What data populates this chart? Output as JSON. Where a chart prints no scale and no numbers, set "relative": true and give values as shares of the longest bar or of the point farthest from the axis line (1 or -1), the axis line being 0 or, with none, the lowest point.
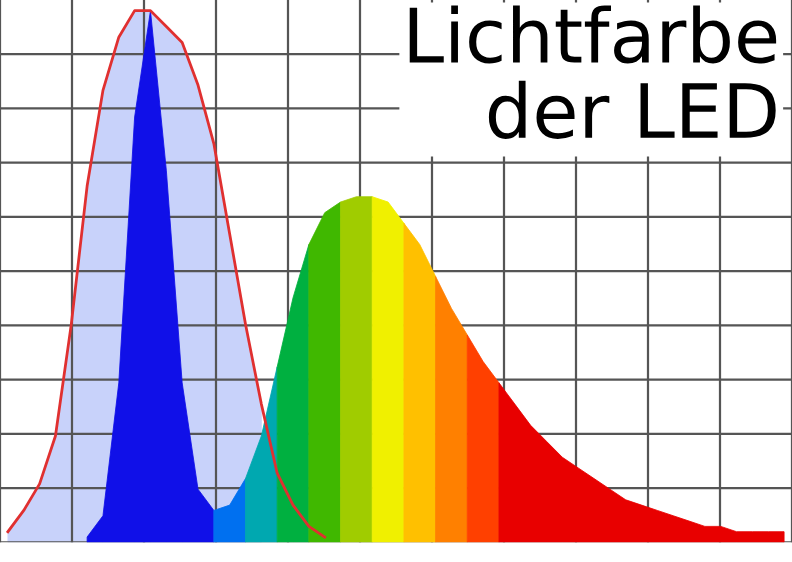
{
  "chart_data": {
    "type": "area",
    "title": "Lichtfarbe der LED",
    "relative": true,
    "grid": true,
    "categories": [
      null,
      null,
      null,
      null,
      null,
      null,
      null,
      null,
      null,
      null,
      null,
      null,
      null,
      null,
      null,
      null,
      null,
      null,
      null,
      null,
      null,
      null,
      null,
      null,
      null,
      null,
      null,
      null,
      null,
      null,
      null,
      null,
      null,
      null,
      null,
      null,
      null,
      null,
      null,
      null,
      null,
      null,
      null,
      null,
      null,
      null,
      null,
      null,
      null,
      null
    ],
    "series": [
      {
        "color": "#c8d2fa",
        "values": [
          0.02,
          0.06,
          0.11,
          0.2,
          0.41,
          0.67,
          0.85,
          0.95,
          1.0,
          1.0,
          0.97,
          0.94,
          0.86,
          0.75,
          0.58,
          0.41,
          0.26,
          null,
          null,
          null,
          null,
          null,
          null,
          null,
          null,
          null,
          null,
          null,
          null,
          null,
          null,
          null,
          null,
          null,
          null,
          null,
          null,
          null,
          null,
          null,
          null,
          null,
          null,
          null,
          null,
          null,
          null,
          null,
          null,
          null
        ]
      },
      {
        "color": "#1010e8",
        "values": [
          null,
          null,
          null,
          null,
          null,
          0.01,
          0.05,
          0.3,
          0.8,
          1.0,
          0.7,
          0.3,
          0.1,
          0.06,
          null,
          null,
          null,
          null,
          null,
          null,
          null,
          null,
          null,
          null,
          null,
          null,
          null,
          null,
          null,
          null,
          null,
          null,
          null,
          null,
          null,
          null,
          null,
          null,
          null,
          null,
          null,
          null,
          null,
          null,
          null,
          null,
          null,
          null,
          null,
          null
        ]
      },
      {
        "color": "#0070f0",
        "values": [
          null,
          null,
          null,
          null,
          null,
          null,
          null,
          null,
          null,
          null,
          null,
          null,
          null,
          0.06,
          0.07,
          0.12,
          null,
          null,
          null,
          null,
          null,
          null,
          null,
          null,
          null,
          null,
          null,
          null,
          null,
          null,
          null,
          null,
          null,
          null,
          null,
          null,
          null,
          null,
          null,
          null,
          null,
          null,
          null,
          null,
          null,
          null,
          null,
          null,
          null,
          null
        ]
      },
      {
        "color": "#00a8b0",
        "values": [
          null,
          null,
          null,
          null,
          null,
          null,
          null,
          null,
          null,
          null,
          null,
          null,
          null,
          null,
          null,
          0.12,
          0.2,
          0.33,
          null,
          null,
          null,
          null,
          null,
          null,
          null,
          null,
          null,
          null,
          null,
          null,
          null,
          null,
          null,
          null,
          null,
          null,
          null,
          null,
          null,
          null,
          null,
          null,
          null,
          null,
          null,
          null,
          null,
          null,
          null,
          null
        ]
      },
      {
        "color": "#00b040",
        "values": [
          null,
          null,
          null,
          null,
          null,
          null,
          null,
          null,
          null,
          null,
          null,
          null,
          null,
          null,
          null,
          null,
          null,
          0.33,
          0.46,
          0.56,
          null,
          null,
          null,
          null,
          null,
          null,
          null,
          null,
          null,
          null,
          null,
          null,
          null,
          null,
          null,
          null,
          null,
          null,
          null,
          null,
          null,
          null,
          null,
          null,
          null,
          null,
          null,
          null,
          null,
          null
        ]
      },
      {
        "color": "#40b800",
        "values": [
          null,
          null,
          null,
          null,
          null,
          null,
          null,
          null,
          null,
          null,
          null,
          null,
          null,
          null,
          null,
          null,
          null,
          null,
          null,
          0.56,
          0.62,
          0.64,
          null,
          null,
          null,
          null,
          null,
          null,
          null,
          null,
          null,
          null,
          null,
          null,
          null,
          null,
          null,
          null,
          null,
          null,
          null,
          null,
          null,
          null,
          null,
          null,
          null,
          null,
          null,
          null
        ]
      },
      {
        "color": "#a0cc00",
        "values": [
          null,
          null,
          null,
          null,
          null,
          null,
          null,
          null,
          null,
          null,
          null,
          null,
          null,
          null,
          null,
          null,
          null,
          null,
          null,
          null,
          null,
          0.64,
          0.65,
          0.65,
          null,
          null,
          null,
          null,
          null,
          null,
          null,
          null,
          null,
          null,
          null,
          null,
          null,
          null,
          null,
          null,
          null,
          null,
          null,
          null,
          null,
          null,
          null,
          null,
          null,
          null
        ]
      },
      {
        "color": "#f0f000",
        "values": [
          null,
          null,
          null,
          null,
          null,
          null,
          null,
          null,
          null,
          null,
          null,
          null,
          null,
          null,
          null,
          null,
          null,
          null,
          null,
          null,
          null,
          null,
          null,
          0.65,
          0.64,
          0.6,
          null,
          null,
          null,
          null,
          null,
          null,
          null,
          null,
          null,
          null,
          null,
          null,
          null,
          null,
          null,
          null,
          null,
          null,
          null,
          null,
          null,
          null,
          null,
          null
        ]
      },
      {
        "color": "#ffc000",
        "values": [
          null,
          null,
          null,
          null,
          null,
          null,
          null,
          null,
          null,
          null,
          null,
          null,
          null,
          null,
          null,
          null,
          null,
          null,
          null,
          null,
          null,
          null,
          null,
          null,
          null,
          0.6,
          0.56,
          0.5,
          null,
          null,
          null,
          null,
          null,
          null,
          null,
          null,
          null,
          null,
          null,
          null,
          null,
          null,
          null,
          null,
          null,
          null,
          null,
          null,
          null,
          null
        ]
      },
      {
        "color": "#ff8000",
        "values": [
          null,
          null,
          null,
          null,
          null,
          null,
          null,
          null,
          null,
          null,
          null,
          null,
          null,
          null,
          null,
          null,
          null,
          null,
          null,
          null,
          null,
          null,
          null,
          null,
          null,
          null,
          null,
          0.5,
          0.44,
          0.39,
          null,
          null,
          null,
          null,
          null,
          null,
          null,
          null,
          null,
          null,
          null,
          null,
          null,
          null,
          null,
          null,
          null,
          null,
          null,
          null
        ]
      },
      {
        "color": "#ff4000",
        "values": [
          null,
          null,
          null,
          null,
          null,
          null,
          null,
          null,
          null,
          null,
          null,
          null,
          null,
          null,
          null,
          null,
          null,
          null,
          null,
          null,
          null,
          null,
          null,
          null,
          null,
          null,
          null,
          null,
          null,
          0.39,
          0.34,
          0.3,
          null,
          null,
          null,
          null,
          null,
          null,
          null,
          null,
          null,
          null,
          null,
          null,
          null,
          null,
          null,
          null,
          null,
          null
        ]
      },
      {
        "color": "#e80000",
        "values": [
          null,
          null,
          null,
          null,
          null,
          null,
          null,
          null,
          null,
          null,
          null,
          null,
          null,
          null,
          null,
          null,
          null,
          null,
          null,
          null,
          null,
          null,
          null,
          null,
          null,
          null,
          null,
          null,
          null,
          null,
          null,
          0.3,
          0.26,
          0.22,
          0.19,
          0.16,
          0.14,
          0.12,
          0.1,
          0.08,
          0.07,
          0.06,
          0.05,
          0.04,
          0.03,
          0.03,
          0.02,
          0.02,
          0.02,
          0.02
        ]
      },
      {
        "type": "line",
        "color": "#e03030",
        "values": [
          0.02,
          0.06,
          0.11,
          0.2,
          0.41,
          0.67,
          0.85,
          0.95,
          1.0,
          1.0,
          0.97,
          0.94,
          0.86,
          0.75,
          0.58,
          0.41,
          0.26,
          0.13,
          0.07,
          0.03,
          0.01,
          null,
          null,
          null,
          null,
          null,
          null,
          null,
          null,
          null,
          null,
          null,
          null,
          null,
          null,
          null,
          null,
          null,
          null,
          null,
          null,
          null,
          null,
          null,
          null,
          null,
          null,
          null,
          null,
          null
        ]
      }
    ]
  }
}
